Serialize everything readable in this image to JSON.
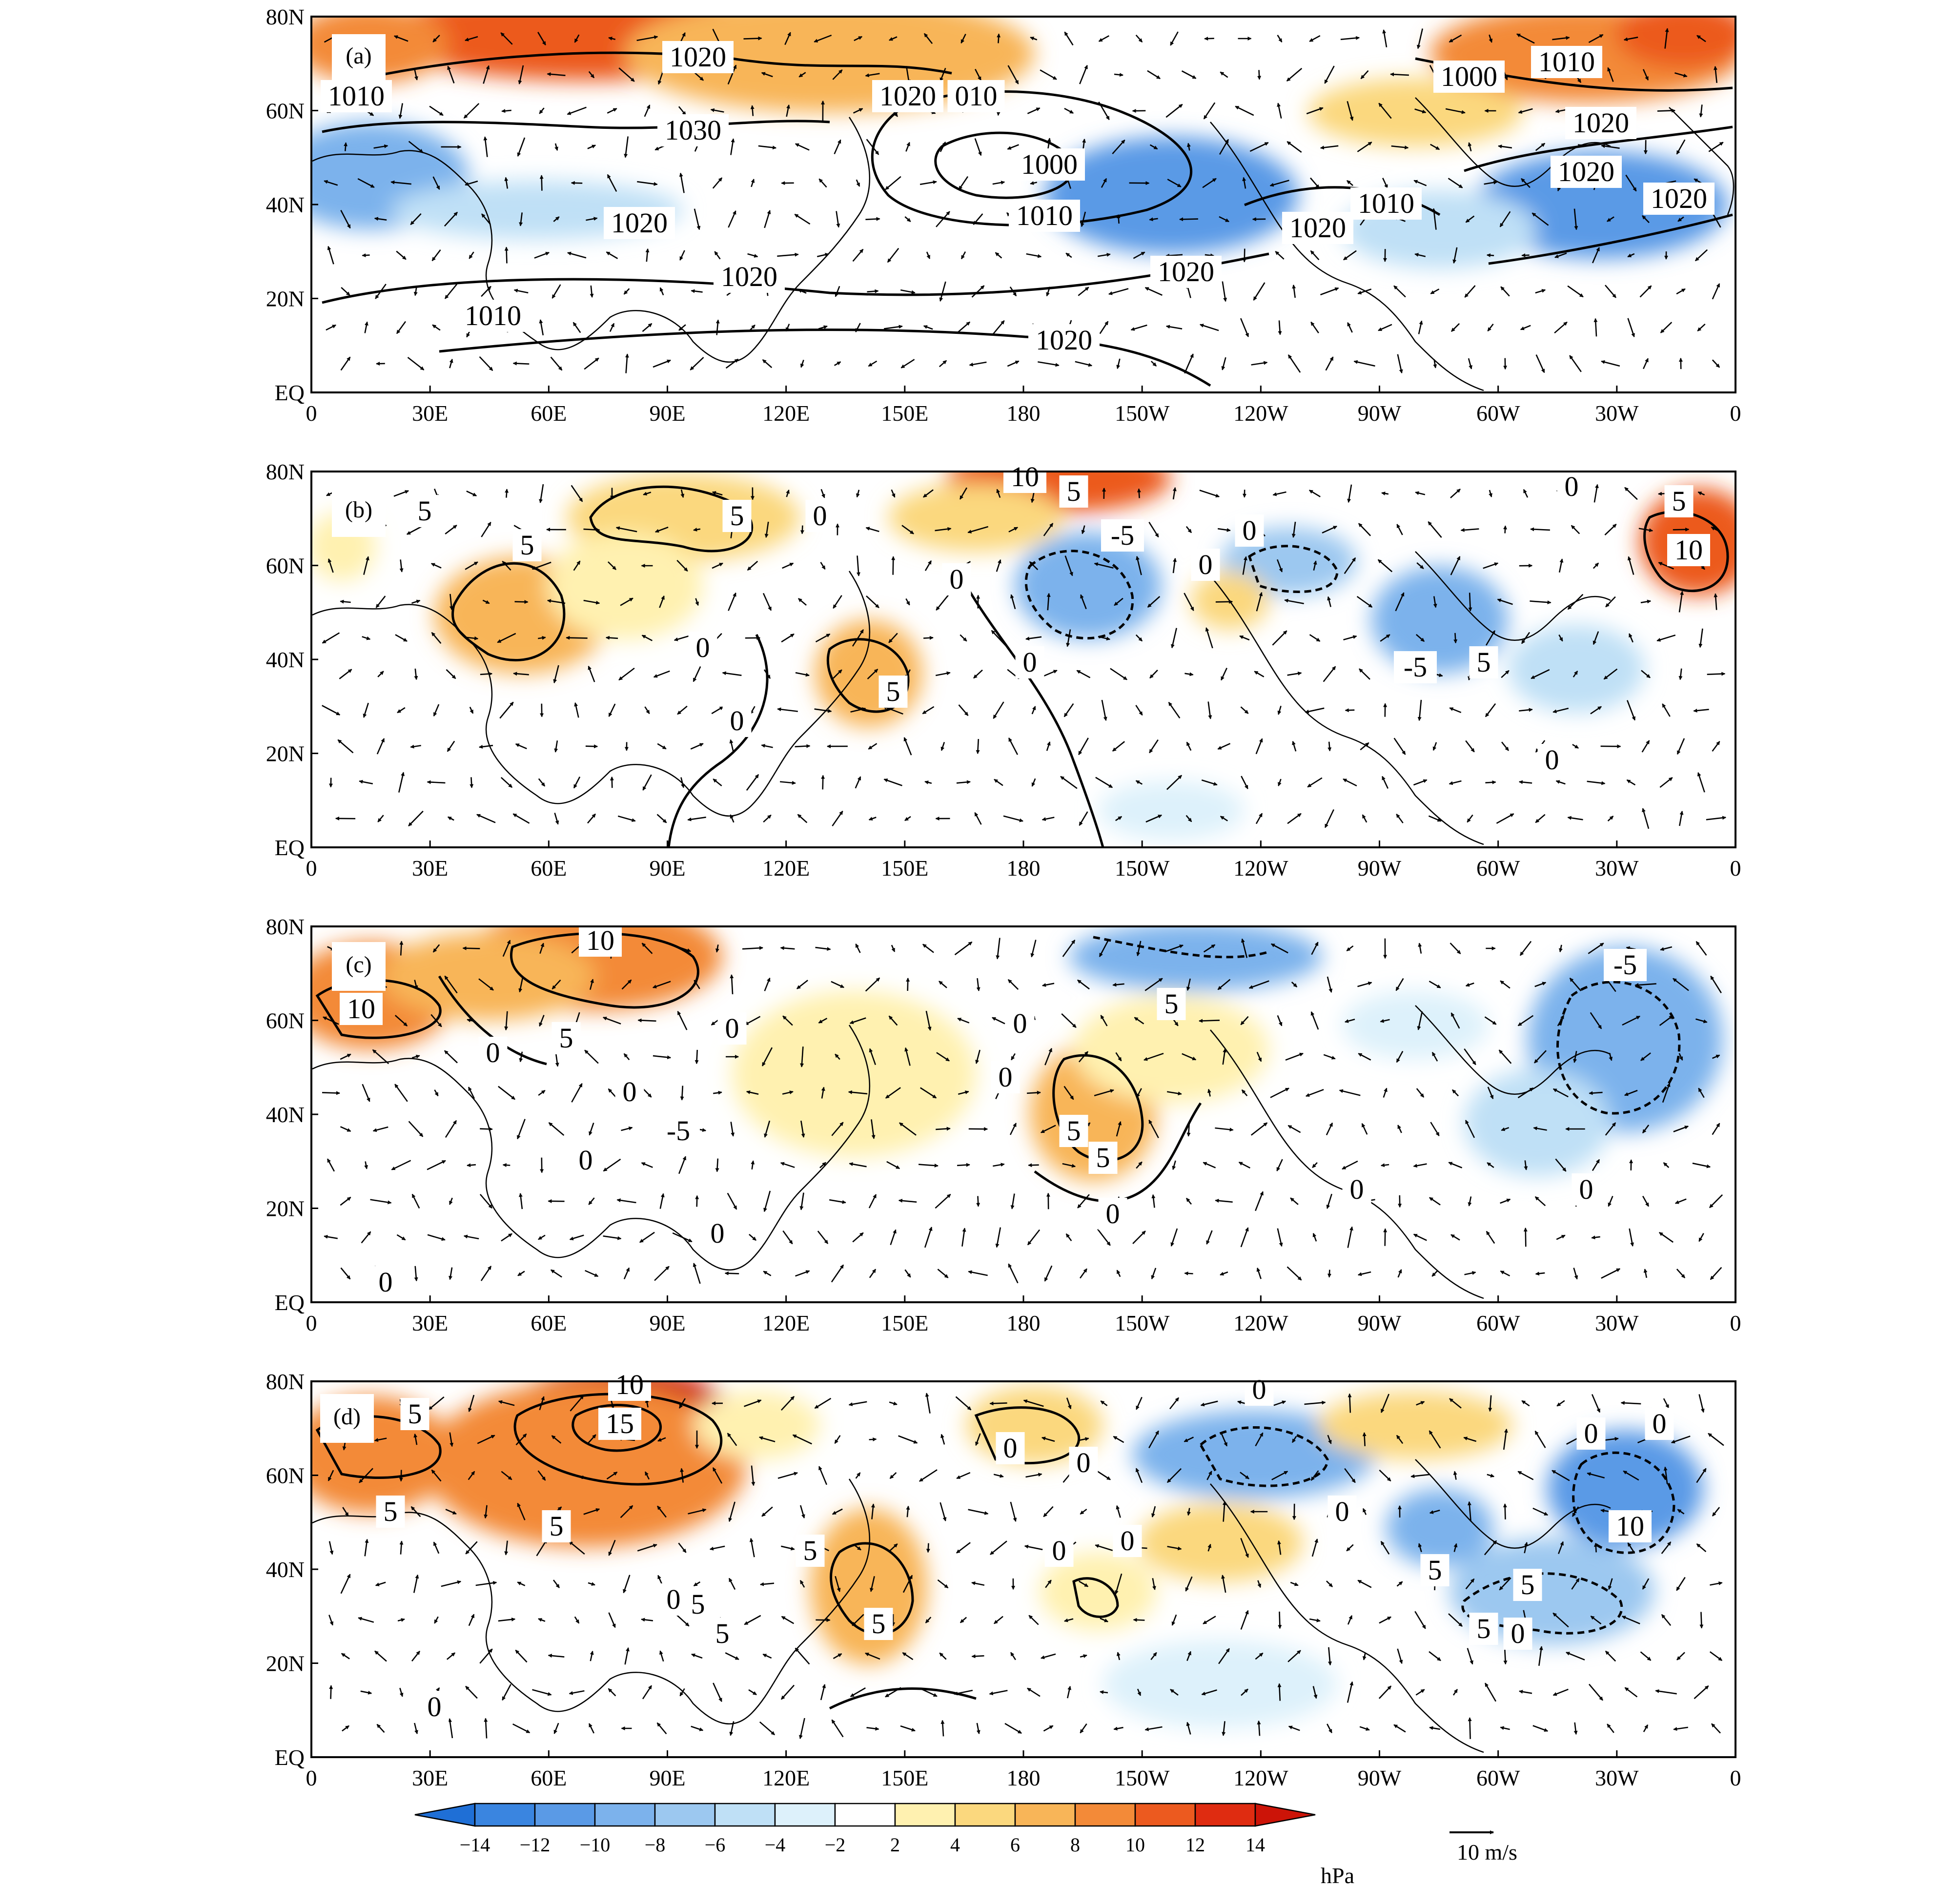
{
  "panels": [
    {
      "letter": "(a)",
      "contours": [
        "1020",
        "1010",
        "1030",
        "1020",
        "010",
        "1000",
        "1010",
        "1020",
        "1020",
        "1020",
        "1020",
        "1010",
        "1010",
        "1020",
        "1000",
        "1010",
        "1020",
        "1020",
        "1020"
      ],
      "shading": "positive-north"
    },
    {
      "letter": "(b)",
      "contours": [
        "5",
        "5",
        "5",
        "0",
        "10",
        "5",
        "-5",
        "0",
        "0",
        "5",
        "10",
        "0",
        "0",
        "5",
        "0",
        "0",
        "5",
        "-5",
        "0",
        "0"
      ],
      "shading": "mixed-b"
    },
    {
      "letter": "(c)",
      "contours": [
        "10",
        "10",
        "5",
        "0",
        "0",
        "0",
        "-5",
        "0",
        "0",
        "5",
        "0",
        "5",
        "5",
        "0",
        "0",
        "0",
        "0",
        "0",
        "-5"
      ],
      "shading": "mixed-c"
    },
    {
      "letter": "(d)",
      "contours": [
        "5",
        "10",
        "15",
        "5",
        "5",
        "0",
        "0",
        "0",
        "5",
        "5",
        "0",
        "0",
        "5",
        "5",
        "0",
        "0",
        "10",
        "5",
        "0",
        "0",
        "0",
        "5",
        "5",
        "0"
      ],
      "shading": "mixed-d"
    }
  ],
  "x_ticks": [
    "0",
    "30E",
    "60E",
    "90E",
    "120E",
    "150E",
    "180",
    "150W",
    "120W",
    "90W",
    "60W",
    "30W",
    "0"
  ],
  "y_ticks": [
    "80N",
    "60N",
    "40N",
    "20N",
    "EQ"
  ],
  "colorbar": {
    "ticks": [
      "−14",
      "−12",
      "−10",
      "−8",
      "−6",
      "−4",
      "−2",
      "2",
      "4",
      "6",
      "8",
      "10",
      "12",
      "14"
    ],
    "unit": "hPa",
    "colors": [
      "#1f6fd6",
      "#3a85e0",
      "#5a9ae6",
      "#7cb2ec",
      "#9cc8f0",
      "#bfe0f6",
      "#ddf1fb",
      "#ffffff",
      "#fff1b0",
      "#fbd87e",
      "#f8b558",
      "#f38a38",
      "#ec5a1f",
      "#df2c11",
      "#cc1408"
    ]
  },
  "vector_reference": {
    "label": "10 m/s"
  }
}
